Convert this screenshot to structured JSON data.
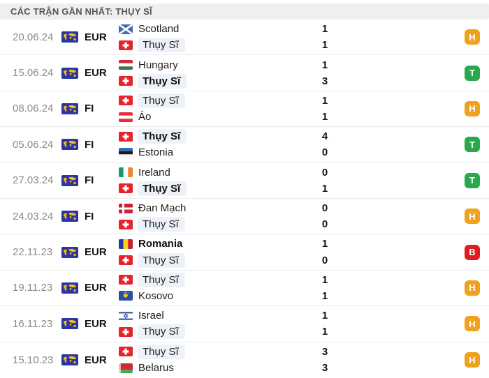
{
  "header": {
    "title": "CÁC TRẬN GẦN NHẤT: THỤY SĨ"
  },
  "colors": {
    "result_H": "#f0a11d",
    "result_T": "#2aa84d",
    "result_B": "#e01b22",
    "team_highlight": "#edf2f8",
    "header_bg": "#efefef",
    "competition_icon_bg": "#2b35a3",
    "competition_icon_map": "#f8bc1c"
  },
  "competition_icon": "world-icon",
  "matches": [
    {
      "date": "20.06.24",
      "competition": "EUR",
      "result": "H",
      "teams": [
        {
          "name": "Scotland",
          "flag": "scotland",
          "score": "1",
          "bold": false,
          "highlighted": false
        },
        {
          "name": "Thụy Sĩ",
          "flag": "switzerland",
          "score": "1",
          "bold": false,
          "highlighted": true
        }
      ]
    },
    {
      "date": "15.06.24",
      "competition": "EUR",
      "result": "T",
      "teams": [
        {
          "name": "Hungary",
          "flag": "hungary",
          "score": "1",
          "bold": false,
          "highlighted": false
        },
        {
          "name": "Thụy Sĩ",
          "flag": "switzerland",
          "score": "3",
          "bold": true,
          "highlighted": true
        }
      ]
    },
    {
      "date": "08.06.24",
      "competition": "FI",
      "result": "H",
      "teams": [
        {
          "name": "Thụy Sĩ",
          "flag": "switzerland",
          "score": "1",
          "bold": false,
          "highlighted": true
        },
        {
          "name": "Áo",
          "flag": "austria",
          "score": "1",
          "bold": false,
          "highlighted": false
        }
      ]
    },
    {
      "date": "05.06.24",
      "competition": "FI",
      "result": "T",
      "teams": [
        {
          "name": "Thụy Sĩ",
          "flag": "switzerland",
          "score": "4",
          "bold": true,
          "highlighted": true
        },
        {
          "name": "Estonia",
          "flag": "estonia",
          "score": "0",
          "bold": false,
          "highlighted": false
        }
      ]
    },
    {
      "date": "27.03.24",
      "competition": "FI",
      "result": "T",
      "teams": [
        {
          "name": "Ireland",
          "flag": "ireland",
          "score": "0",
          "bold": false,
          "highlighted": false
        },
        {
          "name": "Thụy Sĩ",
          "flag": "switzerland",
          "score": "1",
          "bold": true,
          "highlighted": true
        }
      ]
    },
    {
      "date": "24.03.24",
      "competition": "FI",
      "result": "H",
      "teams": [
        {
          "name": "Đan Mạch",
          "flag": "denmark",
          "score": "0",
          "bold": false,
          "highlighted": false
        },
        {
          "name": "Thụy Sĩ",
          "flag": "switzerland",
          "score": "0",
          "bold": false,
          "highlighted": true
        }
      ]
    },
    {
      "date": "22.11.23",
      "competition": "EUR",
      "result": "B",
      "teams": [
        {
          "name": "Romania",
          "flag": "romania",
          "score": "1",
          "bold": true,
          "highlighted": false
        },
        {
          "name": "Thụy Sĩ",
          "flag": "switzerland",
          "score": "0",
          "bold": false,
          "highlighted": true
        }
      ]
    },
    {
      "date": "19.11.23",
      "competition": "EUR",
      "result": "H",
      "teams": [
        {
          "name": "Thụy Sĩ",
          "flag": "switzerland",
          "score": "1",
          "bold": false,
          "highlighted": true
        },
        {
          "name": "Kosovo",
          "flag": "kosovo",
          "score": "1",
          "bold": false,
          "highlighted": false
        }
      ]
    },
    {
      "date": "16.11.23",
      "competition": "EUR",
      "result": "H",
      "teams": [
        {
          "name": "Israel",
          "flag": "israel",
          "score": "1",
          "bold": false,
          "highlighted": false
        },
        {
          "name": "Thụy Sĩ",
          "flag": "switzerland",
          "score": "1",
          "bold": false,
          "highlighted": true
        }
      ]
    },
    {
      "date": "15.10.23",
      "competition": "EUR",
      "result": "H",
      "teams": [
        {
          "name": "Thụy Sĩ",
          "flag": "switzerland",
          "score": "3",
          "bold": false,
          "highlighted": true
        },
        {
          "name": "Belarus",
          "flag": "belarus",
          "score": "3",
          "bold": false,
          "highlighted": false
        }
      ]
    }
  ]
}
